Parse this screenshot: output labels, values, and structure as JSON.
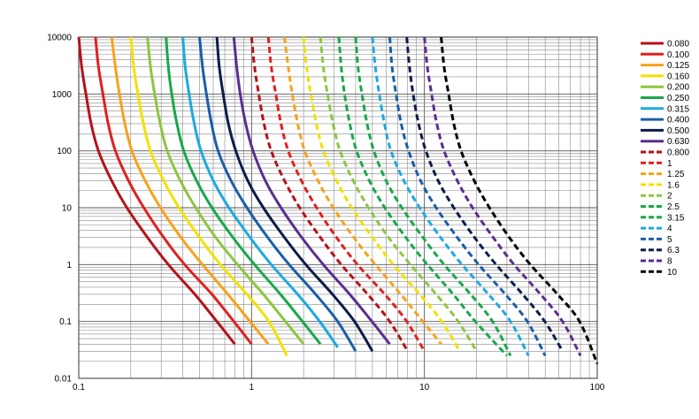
{
  "chart_data": {
    "type": "line",
    "title": "",
    "xlabel": "",
    "ylabel": "",
    "x_scale": "log",
    "y_scale": "log",
    "xlim": [
      0.1,
      100
    ],
    "ylim": [
      0.01,
      10000
    ],
    "grid": true,
    "legend_position": "right",
    "x_tick_labels": [
      "0.1",
      "1",
      "10",
      "100"
    ],
    "y_tick_labels": [
      "0.01",
      "0.1",
      "1",
      "10",
      "100",
      "1000",
      "10000"
    ],
    "series": [
      {
        "name": "0.080",
        "color": "#b5121b",
        "style": "solid",
        "points": [
          [
            0.1,
            10000
          ],
          [
            0.104,
            3000
          ],
          [
            0.11,
            1000
          ],
          [
            0.118,
            300
          ],
          [
            0.13,
            100
          ],
          [
            0.155,
            30
          ],
          [
            0.19,
            10
          ],
          [
            0.25,
            3
          ],
          [
            0.33,
            1
          ],
          [
            0.47,
            0.3
          ],
          [
            0.63,
            0.1
          ],
          [
            0.8,
            0.04
          ]
        ]
      },
      {
        "name": "0.100",
        "color": "#e0201f",
        "style": "solid",
        "points": [
          [
            0.125,
            10000
          ],
          [
            0.13,
            3000
          ],
          [
            0.138,
            1000
          ],
          [
            0.148,
            300
          ],
          [
            0.163,
            100
          ],
          [
            0.194,
            30
          ],
          [
            0.238,
            10
          ],
          [
            0.31,
            3
          ],
          [
            0.41,
            1
          ],
          [
            0.59,
            0.3
          ],
          [
            0.79,
            0.1
          ],
          [
            1.0,
            0.04
          ]
        ]
      },
      {
        "name": "0.125",
        "color": "#f7a21b",
        "style": "solid",
        "points": [
          [
            0.155,
            10000
          ],
          [
            0.163,
            3000
          ],
          [
            0.172,
            1000
          ],
          [
            0.185,
            300
          ],
          [
            0.203,
            100
          ],
          [
            0.242,
            30
          ],
          [
            0.297,
            10
          ],
          [
            0.39,
            3
          ],
          [
            0.52,
            1
          ],
          [
            0.73,
            0.3
          ],
          [
            0.98,
            0.1
          ],
          [
            1.25,
            0.04
          ]
        ]
      },
      {
        "name": "0.160",
        "color": "#f2e100",
        "style": "solid",
        "points": [
          [
            0.2,
            10000
          ],
          [
            0.208,
            3000
          ],
          [
            0.22,
            1000
          ],
          [
            0.237,
            300
          ],
          [
            0.26,
            100
          ],
          [
            0.31,
            30
          ],
          [
            0.38,
            10
          ],
          [
            0.5,
            3
          ],
          [
            0.66,
            1
          ],
          [
            0.94,
            0.3
          ],
          [
            1.26,
            0.1
          ],
          [
            1.6,
            0.025
          ]
        ]
      },
      {
        "name": "0.200",
        "color": "#8cc63f",
        "style": "solid",
        "points": [
          [
            0.25,
            10000
          ],
          [
            0.26,
            3000
          ],
          [
            0.275,
            1000
          ],
          [
            0.296,
            300
          ],
          [
            0.325,
            100
          ],
          [
            0.387,
            30
          ],
          [
            0.475,
            10
          ],
          [
            0.62,
            3
          ],
          [
            0.83,
            1
          ],
          [
            1.17,
            0.3
          ],
          [
            1.57,
            0.1
          ],
          [
            2.0,
            0.04
          ]
        ]
      },
      {
        "name": "0.250",
        "color": "#18a84a",
        "style": "solid",
        "points": [
          [
            0.32,
            10000
          ],
          [
            0.33,
            3000
          ],
          [
            0.345,
            1000
          ],
          [
            0.37,
            300
          ],
          [
            0.405,
            100
          ],
          [
            0.48,
            30
          ],
          [
            0.59,
            10
          ],
          [
            0.78,
            3
          ],
          [
            1.04,
            1
          ],
          [
            1.47,
            0.3
          ],
          [
            1.97,
            0.1
          ],
          [
            2.5,
            0.04
          ]
        ]
      },
      {
        "name": "0.315",
        "color": "#1da9df",
        "style": "solid",
        "points": [
          [
            0.4,
            10000
          ],
          [
            0.413,
            3000
          ],
          [
            0.435,
            1000
          ],
          [
            0.466,
            300
          ],
          [
            0.51,
            100
          ],
          [
            0.6,
            30
          ],
          [
            0.74,
            10
          ],
          [
            0.98,
            3
          ],
          [
            1.3,
            1
          ],
          [
            1.85,
            0.3
          ],
          [
            2.48,
            0.1
          ],
          [
            3.15,
            0.035
          ]
        ]
      },
      {
        "name": "0.400",
        "color": "#1a5ea8",
        "style": "solid",
        "points": [
          [
            0.5,
            10000
          ],
          [
            0.52,
            3000
          ],
          [
            0.548,
            1000
          ],
          [
            0.587,
            300
          ],
          [
            0.64,
            100
          ],
          [
            0.76,
            30
          ],
          [
            0.94,
            10
          ],
          [
            1.24,
            3
          ],
          [
            1.65,
            1
          ],
          [
            2.35,
            0.3
          ],
          [
            3.15,
            0.1
          ],
          [
            4.0,
            0.03
          ]
        ]
      },
      {
        "name": "0.500",
        "color": "#0d1b4a",
        "style": "solid",
        "points": [
          [
            0.63,
            10000
          ],
          [
            0.65,
            3000
          ],
          [
            0.685,
            1000
          ],
          [
            0.734,
            300
          ],
          [
            0.81,
            100
          ],
          [
            0.95,
            30
          ],
          [
            1.17,
            10
          ],
          [
            1.55,
            3
          ],
          [
            2.06,
            1
          ],
          [
            2.94,
            0.3
          ],
          [
            3.94,
            0.1
          ],
          [
            5.0,
            0.03
          ]
        ]
      },
      {
        "name": "0.630",
        "color": "#5b2d90",
        "style": "solid",
        "points": [
          [
            0.79,
            10000
          ],
          [
            0.82,
            3000
          ],
          [
            0.86,
            1000
          ],
          [
            0.925,
            300
          ],
          [
            1.02,
            100
          ],
          [
            1.2,
            30
          ],
          [
            1.48,
            10
          ],
          [
            1.95,
            3
          ],
          [
            2.6,
            1
          ],
          [
            3.7,
            0.3
          ],
          [
            4.97,
            0.1
          ],
          [
            6.3,
            0.04
          ]
        ]
      },
      {
        "name": "0.800",
        "color": "#b5121b",
        "style": "dashed",
        "points": [
          [
            1.0,
            10000
          ],
          [
            1.04,
            3000
          ],
          [
            1.1,
            1000
          ],
          [
            1.18,
            300
          ],
          [
            1.3,
            100
          ],
          [
            1.55,
            30
          ],
          [
            1.9,
            10
          ],
          [
            2.5,
            3
          ],
          [
            3.3,
            1
          ],
          [
            4.7,
            0.3
          ],
          [
            6.3,
            0.1
          ],
          [
            8.0,
            0.03
          ]
        ]
      },
      {
        "name": "1",
        "color": "#e0201f",
        "style": "dashed",
        "points": [
          [
            1.25,
            10000
          ],
          [
            1.3,
            3000
          ],
          [
            1.38,
            1000
          ],
          [
            1.48,
            300
          ],
          [
            1.63,
            100
          ],
          [
            1.94,
            30
          ],
          [
            2.38,
            10
          ],
          [
            3.1,
            3
          ],
          [
            4.1,
            1
          ],
          [
            5.9,
            0.3
          ],
          [
            7.9,
            0.1
          ],
          [
            10,
            0.03
          ]
        ]
      },
      {
        "name": "1.25",
        "color": "#f7a21b",
        "style": "dashed",
        "points": [
          [
            1.55,
            10000
          ],
          [
            1.63,
            3000
          ],
          [
            1.72,
            1000
          ],
          [
            1.85,
            300
          ],
          [
            2.03,
            100
          ],
          [
            2.42,
            30
          ],
          [
            2.97,
            10
          ],
          [
            3.9,
            3
          ],
          [
            5.2,
            1
          ],
          [
            7.3,
            0.3
          ],
          [
            9.8,
            0.1
          ],
          [
            12.5,
            0.04
          ]
        ]
      },
      {
        "name": "1.6",
        "color": "#f2e100",
        "style": "dashed",
        "points": [
          [
            2.0,
            10000
          ],
          [
            2.08,
            3000
          ],
          [
            2.2,
            1000
          ],
          [
            2.37,
            300
          ],
          [
            2.6,
            100
          ],
          [
            3.1,
            30
          ],
          [
            3.8,
            10
          ],
          [
            5.0,
            3
          ],
          [
            6.6,
            1
          ],
          [
            9.4,
            0.3
          ],
          [
            12.6,
            0.1
          ],
          [
            16,
            0.03
          ]
        ]
      },
      {
        "name": "2",
        "color": "#8cc63f",
        "style": "dashed",
        "points": [
          [
            2.5,
            10000
          ],
          [
            2.6,
            3000
          ],
          [
            2.75,
            1000
          ],
          [
            2.96,
            300
          ],
          [
            3.25,
            100
          ],
          [
            3.87,
            30
          ],
          [
            4.75,
            10
          ],
          [
            6.2,
            3
          ],
          [
            8.3,
            1
          ],
          [
            11.7,
            0.3
          ],
          [
            15.7,
            0.1
          ],
          [
            20,
            0.03
          ]
        ]
      },
      {
        "name": "2.5",
        "color": "#18a84a",
        "style": "dashed",
        "points": [
          [
            3.2,
            10000
          ],
          [
            3.3,
            3000
          ],
          [
            3.45,
            1000
          ],
          [
            3.7,
            300
          ],
          [
            4.05,
            100
          ],
          [
            4.8,
            30
          ],
          [
            5.9,
            10
          ],
          [
            7.8,
            3
          ],
          [
            10.4,
            1
          ],
          [
            14.7,
            0.3
          ],
          [
            19.7,
            0.1
          ],
          [
            30,
            0.025
          ]
        ]
      },
      {
        "name": "3.15",
        "color": "#18a84a",
        "style": "dashed",
        "points": [
          [
            4.0,
            10000
          ],
          [
            4.13,
            3000
          ],
          [
            4.35,
            1000
          ],
          [
            4.66,
            300
          ],
          [
            5.1,
            100
          ],
          [
            6.0,
            30
          ],
          [
            7.4,
            10
          ],
          [
            9.8,
            3
          ],
          [
            13,
            1
          ],
          [
            18.5,
            0.3
          ],
          [
            24.8,
            0.1
          ],
          [
            31.5,
            0.025
          ]
        ]
      },
      {
        "name": "4",
        "color": "#1da9df",
        "style": "dashed",
        "points": [
          [
            5.0,
            10000
          ],
          [
            5.2,
            3000
          ],
          [
            5.48,
            1000
          ],
          [
            5.87,
            300
          ],
          [
            6.4,
            100
          ],
          [
            7.6,
            30
          ],
          [
            9.4,
            10
          ],
          [
            12.4,
            3
          ],
          [
            16.5,
            1
          ],
          [
            23.5,
            0.3
          ],
          [
            31.5,
            0.1
          ],
          [
            40,
            0.025
          ]
        ]
      },
      {
        "name": "5",
        "color": "#1a5ea8",
        "style": "dashed",
        "points": [
          [
            6.3,
            10000
          ],
          [
            6.5,
            3000
          ],
          [
            6.85,
            1000
          ],
          [
            7.34,
            300
          ],
          [
            8.1,
            100
          ],
          [
            9.5,
            30
          ],
          [
            11.7,
            10
          ],
          [
            15.5,
            3
          ],
          [
            20.6,
            1
          ],
          [
            29.4,
            0.3
          ],
          [
            39.4,
            0.1
          ],
          [
            50,
            0.025
          ]
        ]
      },
      {
        "name": "6.3",
        "color": "#0d1b4a",
        "style": "dashed",
        "points": [
          [
            7.9,
            10000
          ],
          [
            8.2,
            3000
          ],
          [
            8.6,
            1000
          ],
          [
            9.25,
            300
          ],
          [
            10.2,
            100
          ],
          [
            12,
            30
          ],
          [
            14.8,
            10
          ],
          [
            19.5,
            3
          ],
          [
            26,
            1
          ],
          [
            37,
            0.3
          ],
          [
            49.7,
            0.1
          ],
          [
            63,
            0.03
          ]
        ]
      },
      {
        "name": "8",
        "color": "#5b2d90",
        "style": "dashed",
        "points": [
          [
            10,
            10000
          ],
          [
            10.4,
            3000
          ],
          [
            11,
            1000
          ],
          [
            11.8,
            300
          ],
          [
            13,
            100
          ],
          [
            15.5,
            30
          ],
          [
            19,
            10
          ],
          [
            25,
            3
          ],
          [
            33,
            1
          ],
          [
            47,
            0.3
          ],
          [
            63,
            0.1
          ],
          [
            80,
            0.025
          ]
        ]
      },
      {
        "name": "10",
        "color": "#000000",
        "style": "dashed",
        "points": [
          [
            12.5,
            10000
          ],
          [
            13,
            3000
          ],
          [
            13.8,
            1000
          ],
          [
            14.8,
            300
          ],
          [
            16.3,
            100
          ],
          [
            19.4,
            30
          ],
          [
            23.8,
            10
          ],
          [
            31,
            3
          ],
          [
            41,
            1
          ],
          [
            59,
            0.3
          ],
          [
            79,
            0.1
          ],
          [
            100,
            0.018
          ]
        ]
      }
    ]
  }
}
